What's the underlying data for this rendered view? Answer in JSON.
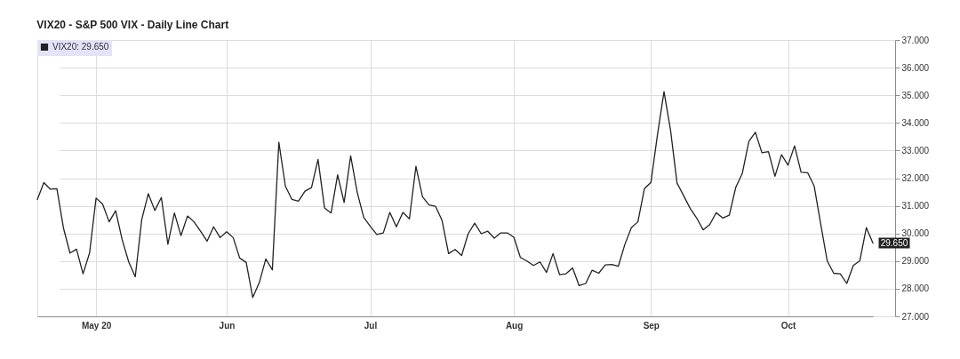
{
  "chart_data": {
    "type": "line",
    "title": "VIX20 - S&P 500 VIX - Daily Line Chart",
    "categories": [
      null,
      null,
      null,
      null,
      null,
      null,
      null,
      null,
      null,
      "May 20",
      null,
      null,
      null,
      null,
      null,
      null,
      null,
      null,
      null,
      null,
      null,
      null,
      null,
      null,
      null,
      null,
      null,
      null,
      null,
      "Jun",
      null,
      null,
      null,
      null,
      null,
      null,
      null,
      null,
      null,
      null,
      null,
      null,
      null,
      null,
      null,
      null,
      null,
      null,
      null,
      null,
      null,
      "Jul",
      null,
      null,
      null,
      null,
      null,
      null,
      null,
      null,
      null,
      null,
      null,
      null,
      null,
      null,
      null,
      null,
      null,
      null,
      null,
      null,
      null,
      "Aug",
      null,
      null,
      null,
      null,
      null,
      null,
      null,
      null,
      null,
      null,
      null,
      null,
      null,
      null,
      null,
      null,
      null,
      null,
      null,
      null,
      "Sep",
      null,
      null,
      null,
      null,
      null,
      null,
      null,
      null,
      null,
      null,
      null,
      null,
      null,
      null,
      null,
      null,
      null,
      null,
      null,
      null,
      "Oct",
      null,
      null,
      null,
      null,
      null,
      null,
      null,
      null,
      null,
      null,
      null,
      null,
      null
    ],
    "series": [
      {
        "name": "VIX20: 29.650",
        "color": "#222222",
        "values": [
          31.23,
          31.84,
          31.6,
          31.62,
          30.2,
          29.29,
          29.43,
          28.54,
          29.29,
          31.28,
          31.06,
          30.42,
          30.82,
          29.77,
          28.97,
          28.43,
          30.51,
          31.44,
          30.83,
          31.3,
          29.61,
          30.74,
          29.92,
          30.63,
          30.42,
          30.08,
          29.72,
          30.24,
          29.85,
          30.06,
          29.85,
          29.11,
          28.95,
          27.68,
          28.22,
          29.08,
          28.68,
          33.3,
          31.71,
          31.23,
          31.17,
          31.53,
          31.66,
          32.68,
          30.92,
          30.74,
          32.12,
          31.12,
          32.81,
          31.49,
          30.58,
          30.26,
          29.96,
          30.02,
          30.76,
          30.24,
          30.76,
          30.53,
          32.43,
          31.33,
          31.03,
          30.98,
          30.47,
          29.27,
          29.42,
          29.2,
          29.99,
          30.37,
          29.99,
          30.08,
          29.83,
          30.02,
          30.02,
          29.86,
          29.13,
          29.0,
          28.84,
          28.97,
          28.59,
          29.27,
          28.51,
          28.54,
          28.75,
          28.11,
          28.19,
          28.67,
          28.56,
          28.86,
          28.88,
          28.81,
          29.6,
          30.21,
          30.42,
          31.62,
          31.85,
          33.57,
          35.13,
          33.74,
          31.82,
          31.37,
          30.91,
          30.56,
          30.13,
          30.32,
          30.75,
          30.56,
          30.66,
          31.67,
          32.18,
          33.33,
          33.66,
          32.92,
          32.96,
          32.07,
          32.85,
          32.47,
          33.17,
          32.21,
          32.2,
          31.72,
          30.35,
          29.01,
          28.56,
          28.54,
          28.19,
          28.84,
          29.01,
          30.21,
          29.65
        ],
        "value_labels": [
          null,
          null,
          null,
          null,
          null,
          null,
          null,
          null,
          null,
          null,
          null,
          null,
          null,
          null,
          null,
          null,
          null,
          null,
          null,
          null,
          null,
          null,
          null,
          null,
          null,
          null,
          null,
          null,
          null,
          null,
          null,
          null,
          null,
          null,
          null,
          null,
          null,
          null,
          null,
          null,
          null,
          null,
          null,
          null,
          null,
          null,
          null,
          null,
          null,
          null,
          null,
          null,
          null,
          null,
          null,
          null,
          null,
          null,
          null,
          null,
          null,
          null,
          null,
          null,
          null,
          null,
          null,
          null,
          null,
          null,
          null,
          null,
          null,
          null,
          null,
          null,
          null,
          null,
          null,
          null,
          null,
          null,
          null,
          null,
          null,
          null,
          null,
          null,
          null,
          null,
          null,
          null,
          null,
          null,
          null,
          null,
          null,
          null,
          null,
          null,
          null,
          null,
          null,
          null,
          null,
          null,
          null,
          null,
          null,
          null,
          null,
          null,
          null,
          null,
          null,
          null,
          null,
          null,
          null,
          null,
          null,
          null,
          null,
          null,
          null,
          null,
          null,
          null,
          "29.650"
        ]
      }
    ],
    "ylim": [
      27,
      37
    ],
    "yticks": [
      {
        "value": 27,
        "label": "27.000"
      },
      {
        "value": 28,
        "label": "28.000"
      },
      {
        "value": 29,
        "label": "29.000"
      },
      {
        "value": 30,
        "label": "30.000"
      },
      {
        "value": 31,
        "label": "31.000"
      },
      {
        "value": 32,
        "label": "32.000"
      },
      {
        "value": 33,
        "label": "33.000"
      },
      {
        "value": 34,
        "label": "34.000"
      },
      {
        "value": 35,
        "label": "35.000"
      },
      {
        "value": 36,
        "label": "36.000"
      },
      {
        "value": 37,
        "label": "37.000"
      }
    ],
    "grid": true,
    "legend": "top left",
    "line_style": "solid"
  }
}
